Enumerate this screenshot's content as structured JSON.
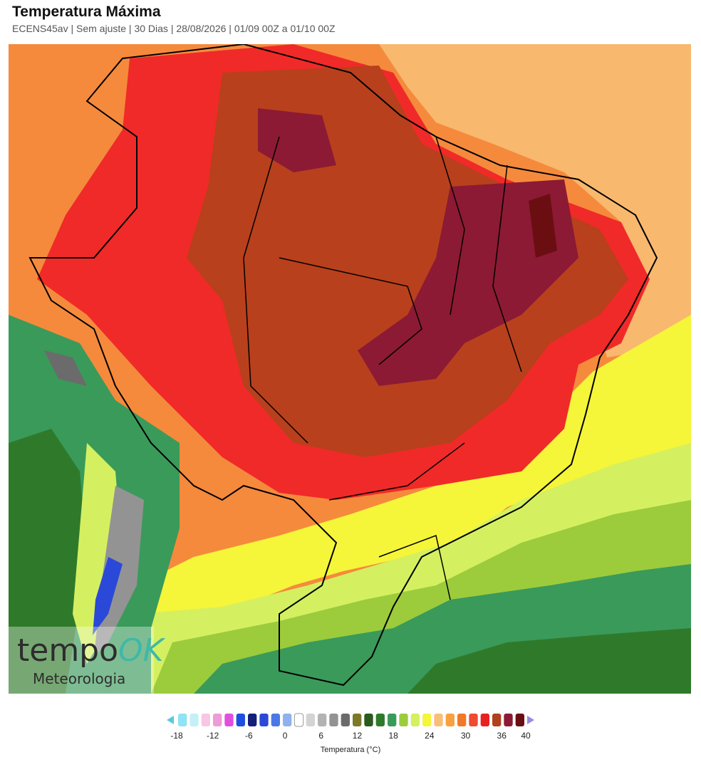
{
  "header": {
    "title": "Temperatura Máxima",
    "subtitle": "ECENS45av | Sem ajuste | 30 Dias | 28/08/2026 | 01/09 00Z a 01/10 00Z"
  },
  "watermark": {
    "brand": "tempo",
    "brand_accent": "OK",
    "tagline": "Meteorologia"
  },
  "legend": {
    "label": "Temperatura (°C)",
    "lim": [
      -18,
      40
    ],
    "ticks": [
      -18,
      -12,
      -6,
      0,
      6,
      12,
      18,
      24,
      30,
      36,
      40
    ],
    "colors": [
      "#8fe3f5",
      "#c5f0f7",
      "#f7c7e3",
      "#ec9cd6",
      "#e04fe0",
      "#1f4fe0",
      "#12207a",
      "#2a49d8",
      "#4b78e8",
      "#8fb1ee",
      "#ffffff",
      "#d3d3d3",
      "#b3b3b3",
      "#939393",
      "#6b6b6b",
      "#7c7a2a",
      "#2a5a1e",
      "#2f7a2a",
      "#3a9a5a",
      "#9ccc3c",
      "#d4f060",
      "#f5f53a",
      "#f8bf7a",
      "#f8a040",
      "#f07a2a",
      "#f04a30",
      "#e82020",
      "#b0401e",
      "#8c1a34",
      "#6a0e12"
    ]
  }
}
